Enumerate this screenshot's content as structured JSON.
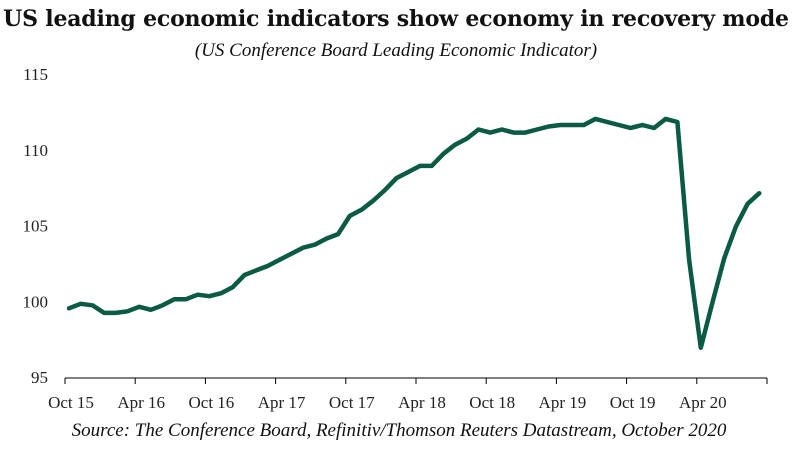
{
  "title": "US leading economic indicators show economy in recovery mode",
  "subtitle": "(US Conference Board Leading Economic Indicator)",
  "source": "Source: The Conference Board, Refinitiv/Thomson Reuters Datastream, October 2020",
  "colors": {
    "line": "#0b5a43",
    "axis": "#000000",
    "text": "#222222"
  },
  "chart_data": {
    "type": "line",
    "title": "US leading economic indicators show economy in recovery mode",
    "subtitle": "(US Conference Board Leading Economic Indicator)",
    "ylim": [
      95,
      115
    ],
    "yticks": [
      95,
      100,
      105,
      110,
      115
    ],
    "xtick_labels": [
      "Oct 15",
      "Apr 16",
      "Oct 16",
      "Apr 17",
      "Oct 17",
      "Apr 18",
      "Oct 18",
      "Apr 19",
      "Oct 19",
      "Apr 20"
    ],
    "xtick_positions": [
      0,
      6,
      12,
      18,
      24,
      30,
      36,
      42,
      48,
      54
    ],
    "grid": false,
    "legend": "none",
    "series": [
      {
        "x": [
          "2015-10",
          "2015-11",
          "2015-12",
          "2016-01",
          "2016-02",
          "2016-03",
          "2016-04",
          "2016-05",
          "2016-06",
          "2016-07",
          "2016-08",
          "2016-09",
          "2016-10",
          "2016-11",
          "2016-12",
          "2017-01",
          "2017-02",
          "2017-03",
          "2017-04",
          "2017-05",
          "2017-06",
          "2017-07",
          "2017-08",
          "2017-09",
          "2017-10",
          "2017-11",
          "2017-12",
          "2018-01",
          "2018-02",
          "2018-03",
          "2018-04",
          "2018-05",
          "2018-06",
          "2018-07",
          "2018-08",
          "2018-09",
          "2018-10",
          "2018-11",
          "2018-12",
          "2019-01",
          "2019-02",
          "2019-03",
          "2019-04",
          "2019-05",
          "2019-06",
          "2019-07",
          "2019-08",
          "2019-09",
          "2019-10",
          "2019-11",
          "2019-12",
          "2020-01",
          "2020-02",
          "2020-03",
          "2020-04",
          "2020-05",
          "2020-06",
          "2020-07",
          "2020-08",
          "2020-09"
        ],
        "values": [
          99.6,
          99.9,
          99.8,
          99.3,
          99.3,
          99.4,
          99.7,
          99.5,
          99.8,
          100.2,
          100.2,
          100.5,
          100.4,
          100.6,
          101.0,
          101.8,
          102.1,
          102.4,
          102.8,
          103.2,
          103.6,
          103.8,
          104.2,
          104.5,
          105.7,
          106.1,
          106.7,
          107.4,
          108.2,
          108.6,
          109.0,
          109.0,
          109.8,
          110.4,
          110.8,
          111.4,
          111.2,
          111.4,
          111.2,
          111.2,
          111.4,
          111.6,
          111.7,
          111.7,
          111.7,
          112.1,
          111.9,
          111.7,
          111.5,
          111.7,
          111.5,
          112.1,
          111.9,
          102.8,
          97.0,
          100.0,
          102.9,
          105.0,
          106.5,
          107.2
        ]
      }
    ]
  }
}
